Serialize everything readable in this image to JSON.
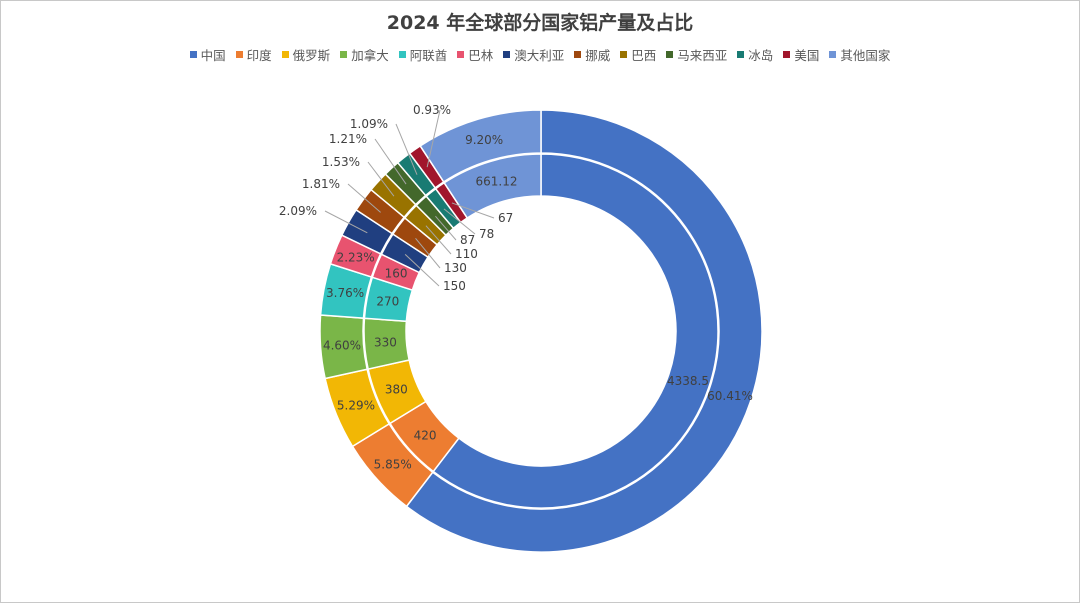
{
  "chart_data": {
    "type": "pie",
    "subtype": "double-donut",
    "title": "2024 年全球部分国家铝产量及占比",
    "legend_position": "top",
    "categories": [
      "中国",
      "印度",
      "俄罗斯",
      "加拿大",
      "阿联酋",
      "巴林",
      "澳大利亚",
      "挪威",
      "巴西",
      "马来西亚",
      "冰岛",
      "美国",
      "其他国家"
    ],
    "colors": [
      "#4472C4",
      "#ED7D31",
      "#F2B705",
      "#7AB648",
      "#32C4C0",
      "#E8536F",
      "#203F80",
      "#9E480E",
      "#997300",
      "#43682B",
      "#197B73",
      "#A1162C",
      "#6F94D6"
    ],
    "series": [
      {
        "ring": "inner",
        "values": [
          4338.5,
          420,
          380,
          330,
          270,
          160,
          150,
          130,
          110,
          87,
          78,
          67,
          661.12
        ],
        "labels": [
          "4338.5",
          "420",
          "380",
          "330",
          "270",
          "160",
          "150",
          "130",
          "110",
          "87",
          "78",
          "67",
          "661.12"
        ]
      },
      {
        "ring": "outer",
        "values": [
          60.41,
          5.85,
          5.29,
          4.6,
          3.76,
          2.23,
          2.09,
          1.81,
          1.53,
          1.21,
          1.09,
          0.93,
          9.2
        ],
        "labels": [
          "60.41%",
          "5.85%",
          "5.29%",
          "4.60%",
          "3.76%",
          "2.23%",
          "2.09%",
          "1.81%",
          "1.53%",
          "1.21%",
          "1.09%",
          "0.93%",
          "9.20%"
        ]
      }
    ]
  }
}
